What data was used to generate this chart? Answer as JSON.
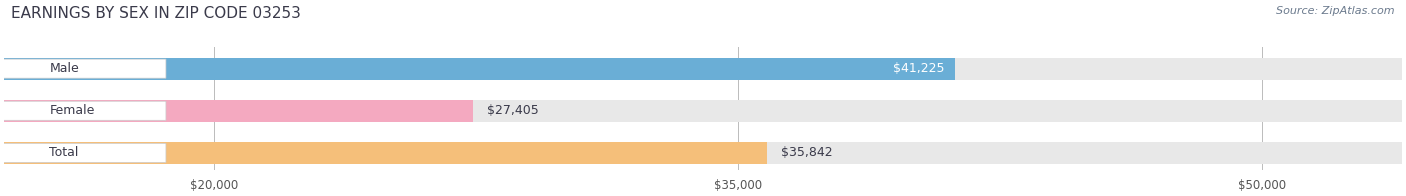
{
  "title": "EARNINGS BY SEX IN ZIP CODE 03253",
  "source": "Source: ZipAtlas.com",
  "categories": [
    "Male",
    "Female",
    "Total"
  ],
  "values": [
    41225,
    27405,
    35842
  ],
  "bar_colors": [
    "#6aaed6",
    "#f4a9c0",
    "#f5bf7a"
  ],
  "bar_bg_color": "#e8e8e8",
  "value_labels": [
    "$41,225",
    "$27,405",
    "$35,842"
  ],
  "tick_labels": [
    "$20,000",
    "$35,000",
    "$50,000"
  ],
  "tick_values": [
    20000,
    35000,
    50000
  ],
  "xmin": 14000,
  "xmax": 54000,
  "figsize": [
    14.06,
    1.96
  ],
  "dpi": 100,
  "title_fontsize": 11,
  "source_fontsize": 8,
  "label_fontsize": 9,
  "value_fontsize": 9,
  "tick_fontsize": 8.5,
  "bg_color": "#ffffff",
  "title_color": "#3a3a4a",
  "source_color": "#6b7a8d"
}
